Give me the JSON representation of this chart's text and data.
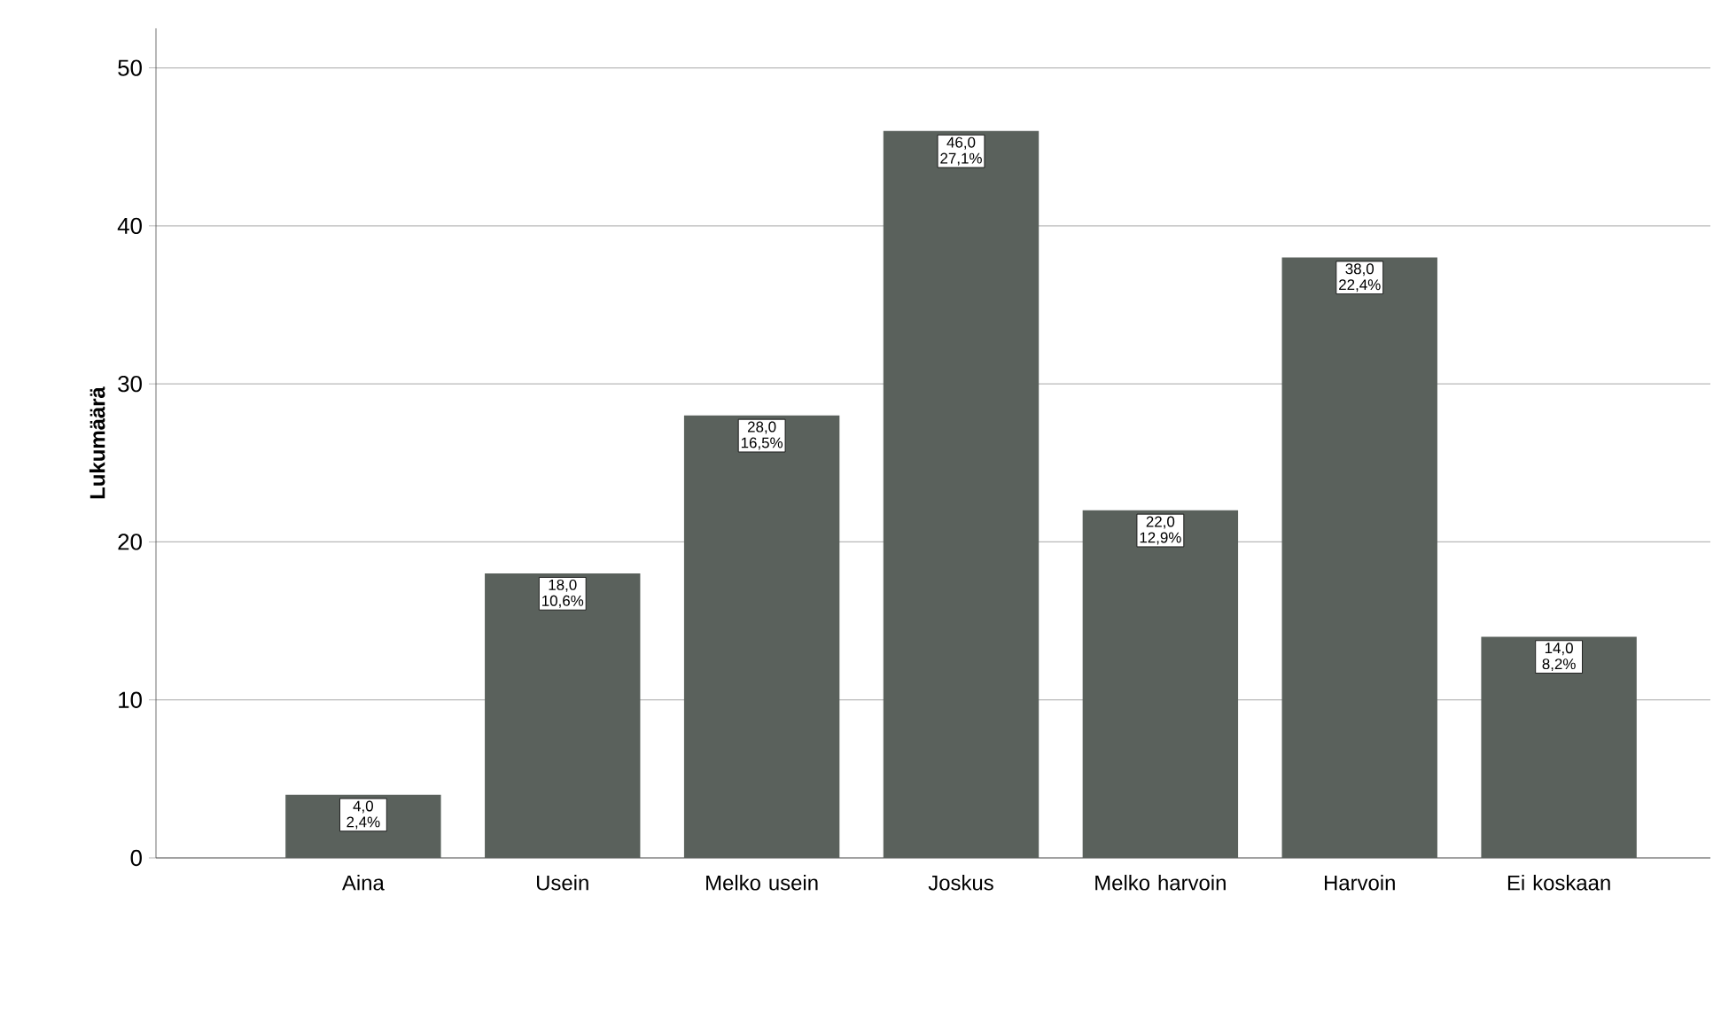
{
  "chart_data": {
    "type": "bar",
    "ylabel": "Lukumäärä",
    "categories": [
      "Aina",
      "Usein",
      "Melko usein",
      "Joskus",
      "Melko harvoin",
      "Harvoin",
      "Ei koskaan"
    ],
    "values": [
      4,
      18,
      28,
      46,
      22,
      38,
      14
    ],
    "value_labels": [
      "4,0 2,4%",
      "18,0 10,6%",
      "28,0 16,5%",
      "46,0 27,1%",
      "22,0 12,9%",
      "38,0 22,4%",
      "14,0 8,2%"
    ],
    "color": "#5a615c",
    "ylim": [
      0,
      52.5
    ],
    "yticks": [
      0,
      10,
      20,
      30,
      40,
      50
    ],
    "grid": "y"
  }
}
